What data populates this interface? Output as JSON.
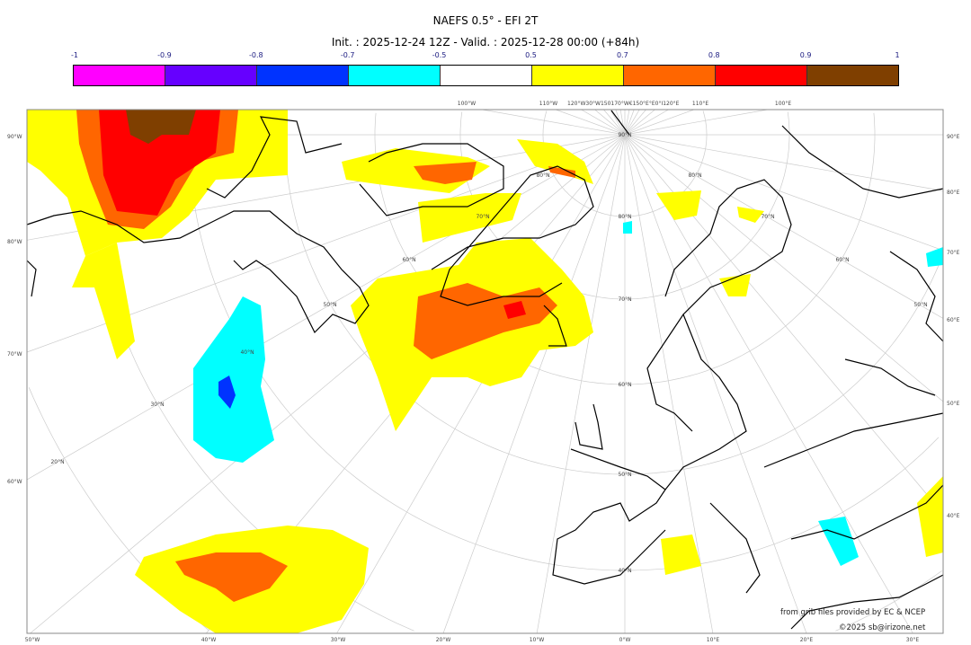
{
  "title": "NAEFS 0.5° - EFI 2T",
  "subtitle": "Init. : 2025-12-24 12Z - Valid. : 2025-12-28 00:00 (+84h)",
  "colorbar": {
    "ticks": [
      "-1",
      "-0.9",
      "-0.8",
      "-0.7",
      "-0.5",
      "0.5",
      "0.7",
      "0.8",
      "0.9",
      "1"
    ],
    "colors": [
      "#ff00ff",
      "#6600ff",
      "#0033ff",
      "#00ffff",
      "#ffffff",
      "#ffff00",
      "#ff6600",
      "#ff0000",
      "#7f3f00"
    ]
  },
  "map": {
    "left_labels": [
      "90°W",
      "80°W",
      "70°W",
      "60°W"
    ],
    "right_labels": [
      "90°E",
      "80°E",
      "70°E",
      "60°E",
      "50°E",
      "40°E"
    ],
    "bottom_labels": [
      "50°W",
      "40°W",
      "30°W",
      "20°W",
      "10°W",
      "0°W",
      "10°E",
      "20°E",
      "30°E"
    ],
    "top_labels": [
      "100°W",
      "110°W",
      "120°W30°W150170°W€150°E°E0°I120°E",
      "110°E",
      "100°E"
    ],
    "lat_labels": [
      "90°N",
      "80°N",
      "70°N",
      "60°N",
      "50°N",
      "40°N",
      "30°N",
      "20°N",
      "80°N",
      "70°N",
      "60°N",
      "50°N",
      "80°N",
      "70°N",
      "60°N",
      "50°N",
      "40°N"
    ]
  },
  "credits": {
    "source": "from grib files provided by EC & NCEP",
    "copyright": "©2025 sb@irizone.net"
  }
}
